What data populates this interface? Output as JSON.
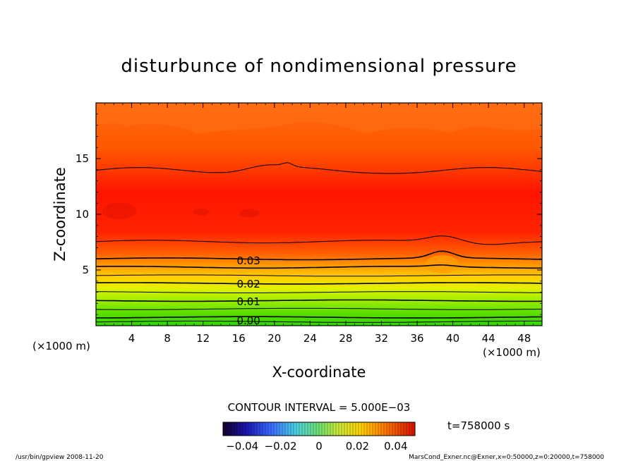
{
  "chart_data": {
    "type": "contour",
    "title": "disturbunce of nondimensional pressure",
    "xlabel": "X-coordinate",
    "ylabel": "Z-coordinate",
    "x_unit": "(×1000 m)",
    "y_unit": "(×1000 m)",
    "xlim": [
      0,
      50
    ],
    "ylim": [
      0,
      20
    ],
    "x_ticks": [
      4,
      8,
      12,
      16,
      20,
      24,
      28,
      32,
      36,
      40,
      44,
      48
    ],
    "y_ticks": [
      5,
      10,
      15
    ],
    "contour_interval_text": "CONTOUR INTERVAL = 5.000E−03",
    "contour_interval": 0.005,
    "contour_labels": [
      {
        "text": "0.03",
        "value": 0.03,
        "x": 17.1,
        "z": 5.9
      },
      {
        "text": "0.02",
        "value": 0.02,
        "x": 17.1,
        "z": 3.8
      },
      {
        "text": "0.01",
        "value": 0.01,
        "x": 17.1,
        "z": 2.2
      },
      {
        "text": "0.00",
        "value": 0.0,
        "x": 17.1,
        "z": 0.5
      }
    ],
    "colorbar": {
      "range": [
        -0.05,
        0.05
      ],
      "tick_labels": [
        "−0.04",
        "−0.02",
        "0",
        "0.02",
        "0.04"
      ],
      "tick_values": [
        -0.04,
        -0.02,
        0,
        0.02,
        0.04
      ]
    },
    "time_label": "t=758000 s"
  },
  "footer": {
    "left": "/usr/bin/gpview   2008-11-20",
    "right": "MarsCond_Exner.nc@Exner,x=0:50000,z=0:20000,t=758000"
  }
}
